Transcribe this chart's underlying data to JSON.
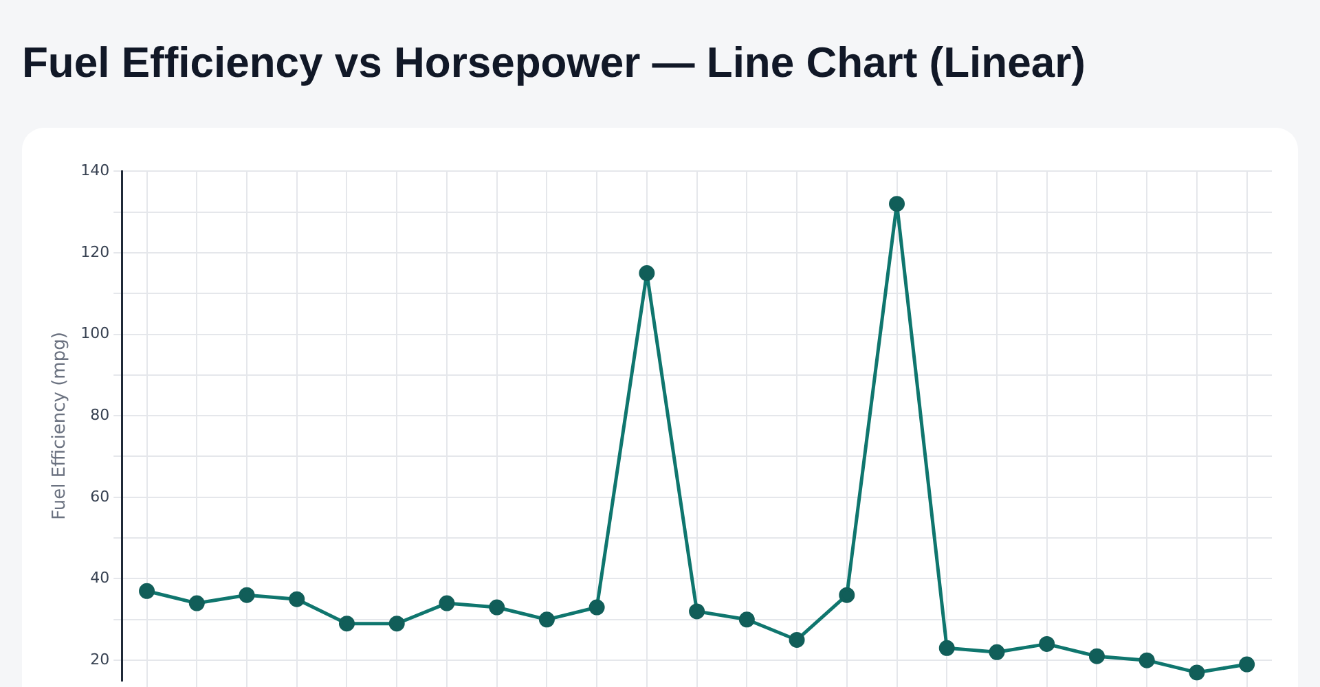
{
  "chart_data": {
    "type": "line",
    "title": "Fuel Efficiency vs Horsepower — Line Chart (Linear)",
    "ylabel": "Fuel Efficiency (mpg)",
    "categories": [
      null,
      null,
      null,
      null,
      null,
      null,
      null,
      null,
      null,
      null,
      null,
      null,
      null,
      null,
      null,
      null,
      null,
      null,
      null,
      null,
      null,
      null,
      null
    ],
    "series": [
      {
        "color": "#0f766e",
        "values": [
          37,
          34,
          36,
          35,
          29,
          29,
          34,
          33,
          30,
          33,
          115,
          32,
          30,
          25,
          36,
          132,
          23,
          22,
          24,
          21,
          20,
          17,
          19
        ]
      }
    ],
    "ylim": [
      15,
      140
    ],
    "yticks": [
      20,
      {
        "value": 30,
        "label": null
      },
      40,
      {
        "value": 50,
        "label": null
      },
      60,
      {
        "value": 70,
        "label": null
      },
      80,
      {
        "value": 90,
        "label": null
      },
      100,
      {
        "value": 110,
        "label": null
      },
      120,
      {
        "value": 130,
        "label": null
      },
      140
    ],
    "grid": true,
    "marker": "circle",
    "line_style": "solid",
    "legend": false,
    "tick_labels": "y"
  }
}
